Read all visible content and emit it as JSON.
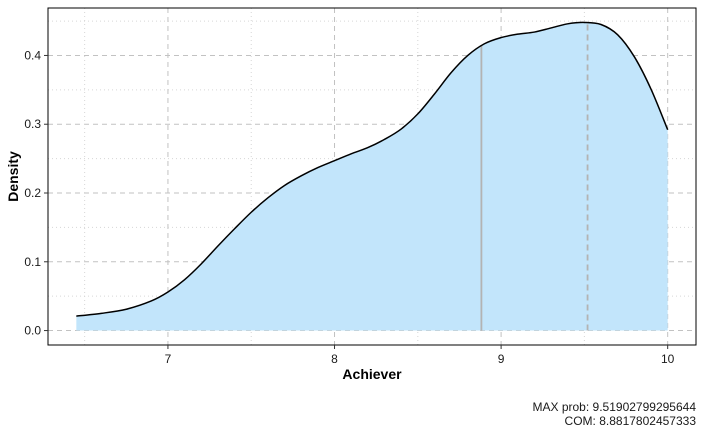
{
  "chart_data": {
    "type": "area",
    "xlabel": "Achiever",
    "ylabel": "Density",
    "xlim": [
      6.28,
      10.17
    ],
    "ylim": [
      -0.021,
      0.469
    ],
    "x_ticks": [
      7,
      8,
      9,
      10
    ],
    "y_ticks": [
      0.0,
      0.1,
      0.2,
      0.3,
      0.4
    ],
    "grid": true,
    "series": [
      {
        "x": [
          6.45,
          6.6,
          6.75,
          6.9,
          7.0,
          7.1,
          7.2,
          7.3,
          7.4,
          7.5,
          7.6,
          7.7,
          7.8,
          7.9,
          8.0,
          8.1,
          8.2,
          8.3,
          8.4,
          8.5,
          8.6,
          8.7,
          8.8,
          8.9,
          9.0,
          9.1,
          9.2,
          9.3,
          9.4,
          9.5,
          9.6,
          9.7,
          9.8,
          9.9,
          10.0
        ],
        "y": [
          0.021,
          0.025,
          0.031,
          0.043,
          0.056,
          0.074,
          0.097,
          0.123,
          0.148,
          0.172,
          0.193,
          0.211,
          0.225,
          0.237,
          0.247,
          0.257,
          0.266,
          0.278,
          0.293,
          0.315,
          0.344,
          0.375,
          0.4,
          0.417,
          0.426,
          0.431,
          0.434,
          0.44,
          0.446,
          0.448,
          0.445,
          0.43,
          0.398,
          0.351,
          0.292
        ]
      }
    ],
    "fill_color": "#c2e5fb",
    "line_color": "#000000",
    "vlines": [
      {
        "label": "COM",
        "x": 8.8817802457333,
        "color": "#b3b3b3",
        "style": "solid"
      },
      {
        "label": "MAX prob",
        "x": 9.51902799295644,
        "color": "#b3b3b3",
        "style": "dashed"
      }
    ]
  },
  "caption": {
    "max_label": "MAX prob:",
    "max_value": "9.51902799295644",
    "com_label": "COM:",
    "com_value": "8.8817802457333"
  }
}
